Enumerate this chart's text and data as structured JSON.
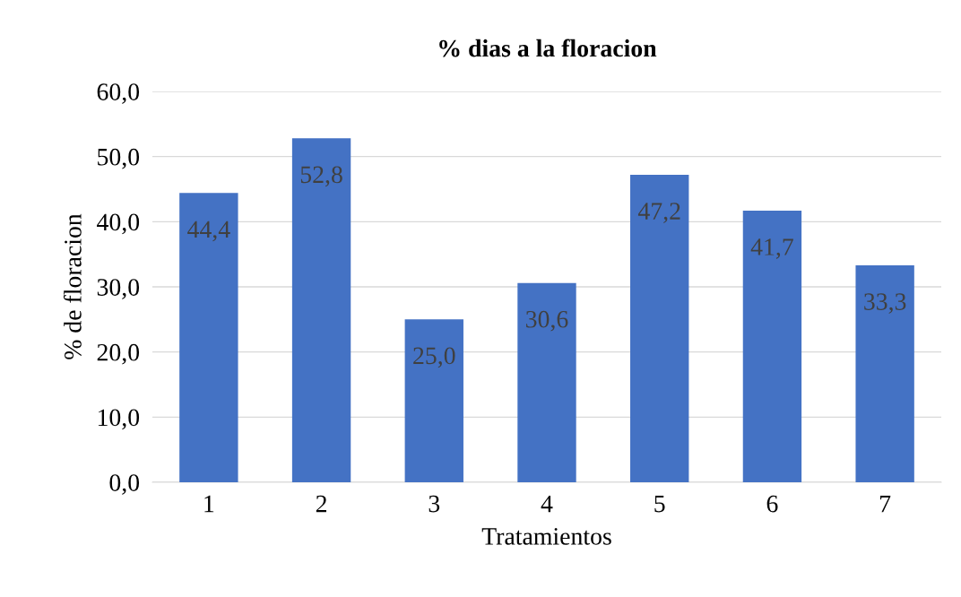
{
  "chart_data": {
    "type": "bar",
    "title": "% dias a la floracion",
    "xlabel": "Tratamientos",
    "ylabel": "% de floracion",
    "categories": [
      "1",
      "2",
      "3",
      "4",
      "5",
      "6",
      "7"
    ],
    "values": [
      44.4,
      52.8,
      25.0,
      30.6,
      47.2,
      41.7,
      33.3
    ],
    "value_labels": [
      "44,4",
      "52,8",
      "25,0",
      "30,6",
      "47,2",
      "41,7",
      "33,3"
    ],
    "color": "#4472c4",
    "ylim": [
      0,
      60
    ],
    "yticks": [
      {
        "value": 0,
        "label": "0,0"
      },
      {
        "value": 10,
        "label": "10,0"
      },
      {
        "value": 20,
        "label": "20,0"
      },
      {
        "value": 30,
        "label": "30,0"
      },
      {
        "value": 40,
        "label": "40,0"
      },
      {
        "value": 50,
        "label": "50,0"
      },
      {
        "value": 60,
        "label": "60,0"
      }
    ],
    "grid": "y"
  }
}
